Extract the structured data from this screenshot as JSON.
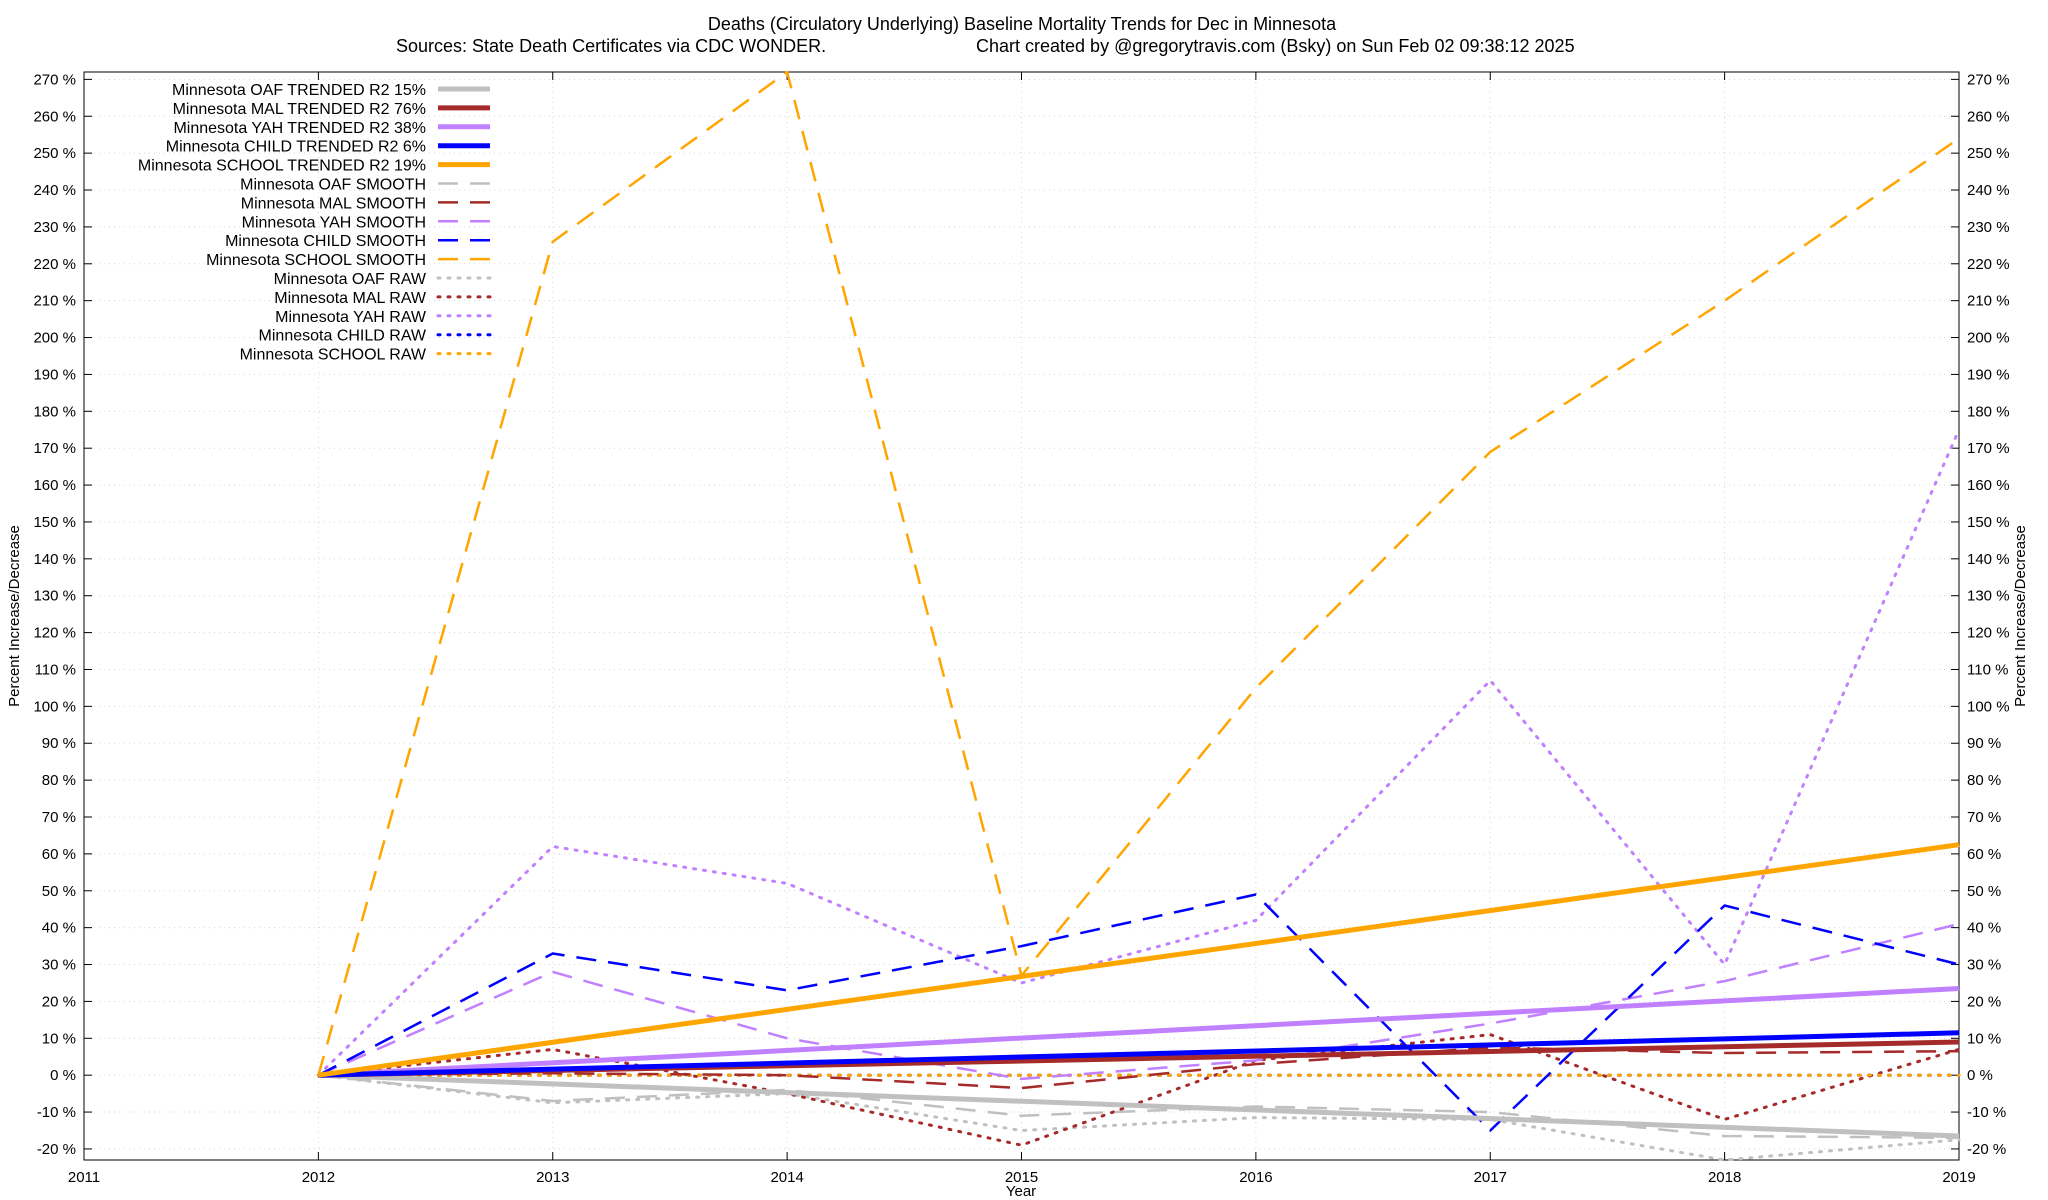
{
  "chart_data": {
    "type": "line",
    "title": "Deaths (Circulatory Underlying)  Baseline Mortality Trends for Dec in Minnesota",
    "subtitle_left": "Sources: State Death Certificates via CDC WONDER.",
    "subtitle_right": "Chart created by @gregorytravis.com (Bsky) on Sun Feb 02 09:38:12 2025",
    "xlabel": "Year",
    "ylabel_left": "Percent Increase/Decrease",
    "ylabel_right": "Percent Increase/Decrease",
    "xlim": [
      2011,
      2019
    ],
    "ylim": [
      -23,
      272
    ],
    "x_ticks": [
      2011,
      2012,
      2013,
      2014,
      2015,
      2016,
      2017,
      2018,
      2019
    ],
    "x_tick_labels": [
      "2011",
      "2012",
      "2013",
      "2014",
      "2015",
      "2016",
      "2017",
      "2018",
      "2019"
    ],
    "y_ticks": [
      -20,
      -10,
      0,
      10,
      20,
      30,
      40,
      50,
      60,
      70,
      80,
      90,
      100,
      110,
      120,
      130,
      140,
      150,
      160,
      170,
      180,
      190,
      200,
      210,
      220,
      230,
      240,
      250,
      260,
      270
    ],
    "y_tick_labels_left": [
      "-20 %",
      "-10 %",
      "0 %",
      "10 %",
      "20 %",
      "30 %",
      "40 %",
      "50 %",
      "60 %",
      "70 %",
      "80 %",
      "90 %",
      "100 %",
      "110 %",
      "120 %",
      "130 %",
      "140 %",
      "150 %",
      "160 %",
      "170 %",
      "180 %",
      "190 %",
      "200 %",
      "210 %",
      "220 %",
      "230 %",
      "240 %",
      "250 %",
      "260 %",
      "270 %"
    ],
    "y_tick_labels_right": [
      "-20 %",
      "-10 %",
      "0 %",
      "10 %",
      "20 %",
      "30 %",
      "40 %",
      "50 %",
      "60 %",
      "70 %",
      "80 %",
      "90 %",
      "100 %",
      "110 %",
      "120 %",
      "130 %",
      "140 %",
      "150 %",
      "160 %",
      "170 %",
      "180 %",
      "190 %",
      "200 %",
      "210 %",
      "220 %",
      "230 %",
      "240 %",
      "250 %",
      "260 %",
      "270 %"
    ],
    "grid": true,
    "legend_position": "top-left",
    "series": [
      {
        "name": "Minnesota OAF TRENDED R2  15%",
        "style": "solid",
        "color": "#c0c0c0",
        "x": [
          2012,
          2019
        ],
        "values": [
          0,
          -16.5
        ]
      },
      {
        "name": "Minnesota MAL TRENDED R2  76%",
        "style": "solid",
        "color": "#a52a2a",
        "x": [
          2012,
          2019
        ],
        "values": [
          0,
          9
        ]
      },
      {
        "name": "Minnesota YAH TRENDED R2  38%",
        "style": "solid",
        "color": "#c080ff",
        "x": [
          2012,
          2019
        ],
        "values": [
          0,
          23.5
        ]
      },
      {
        "name": "Minnesota CHILD TRENDED R2   6%",
        "style": "solid",
        "color": "#0000ff",
        "x": [
          2012,
          2019
        ],
        "values": [
          0,
          11.5
        ]
      },
      {
        "name": "Minnesota SCHOOL TRENDED R2  19%",
        "style": "solid",
        "color": "#ffa500",
        "x": [
          2012,
          2019
        ],
        "values": [
          0,
          62.5
        ]
      },
      {
        "name": "Minnesota OAF SMOOTH",
        "style": "dashed",
        "color": "#c0c0c0",
        "x": [
          2012,
          2013,
          2014,
          2015,
          2016,
          2017,
          2018,
          2019
        ],
        "values": [
          0,
          -7,
          -4,
          -11,
          -8.5,
          -10,
          -16.5,
          -17
        ]
      },
      {
        "name": "Minnesota MAL SMOOTH",
        "style": "dashed",
        "color": "#a52a2a",
        "x": [
          2012,
          2013,
          2014,
          2015,
          2016,
          2017,
          2018,
          2019
        ],
        "values": [
          0,
          0.5,
          0,
          -3.5,
          3,
          7.5,
          6,
          6.5
        ]
      },
      {
        "name": "Minnesota YAH SMOOTH",
        "style": "dashed",
        "color": "#c080ff",
        "x": [
          2012,
          2013,
          2014,
          2015,
          2016,
          2017,
          2018,
          2019
        ],
        "values": [
          0,
          28,
          10,
          -1,
          4,
          14,
          25.5,
          41
        ]
      },
      {
        "name": "Minnesota CHILD SMOOTH",
        "style": "dashed",
        "color": "#0000ff",
        "x": [
          2012,
          2013,
          2014,
          2015,
          2016,
          2017,
          2018,
          2019
        ],
        "values": [
          0,
          33,
          23,
          35,
          49,
          -15,
          46,
          30
        ]
      },
      {
        "name": "Minnesota SCHOOL SMOOTH",
        "style": "dashed",
        "color": "#ffa500",
        "x": [
          2012,
          2013,
          2014,
          2015,
          2016,
          2017,
          2018,
          2019
        ],
        "values": [
          0,
          226,
          272,
          27,
          105,
          169,
          210,
          254
        ]
      },
      {
        "name": "Minnesota OAF RAW",
        "style": "dotted",
        "color": "#c0c0c0",
        "x": [
          2012,
          2013,
          2014,
          2015,
          2016,
          2017,
          2018,
          2019
        ],
        "values": [
          0,
          -7.5,
          -5,
          -15,
          -11.5,
          -12,
          -23,
          -17.5
        ]
      },
      {
        "name": "Minnesota MAL RAW",
        "style": "dotted",
        "color": "#a52a2a",
        "x": [
          2012,
          2013,
          2014,
          2015,
          2016,
          2017,
          2018,
          2019
        ],
        "values": [
          0,
          7,
          -5,
          -19,
          4,
          11,
          -12,
          7
        ]
      },
      {
        "name": "Minnesota YAH RAW",
        "style": "dotted",
        "color": "#c080ff",
        "x": [
          2012,
          2013,
          2014,
          2015,
          2016,
          2017,
          2018,
          2019
        ],
        "values": [
          0,
          62,
          52,
          25,
          42,
          107,
          30,
          175
        ]
      },
      {
        "name": "Minnesota CHILD RAW",
        "style": "dotted",
        "color": "#0000ff",
        "x": [
          2012,
          2013,
          2014,
          2015,
          2016,
          2017,
          2018,
          2019
        ],
        "values": [
          0,
          0,
          0,
          0,
          0,
          0,
          0,
          0
        ]
      },
      {
        "name": "Minnesota SCHOOL RAW",
        "style": "dotted",
        "color": "#ffa500",
        "x": [
          2012,
          2013,
          2014,
          2015,
          2016,
          2017,
          2018,
          2019
        ],
        "values": [
          0,
          0,
          0,
          0,
          0,
          0,
          0,
          0
        ]
      }
    ]
  }
}
